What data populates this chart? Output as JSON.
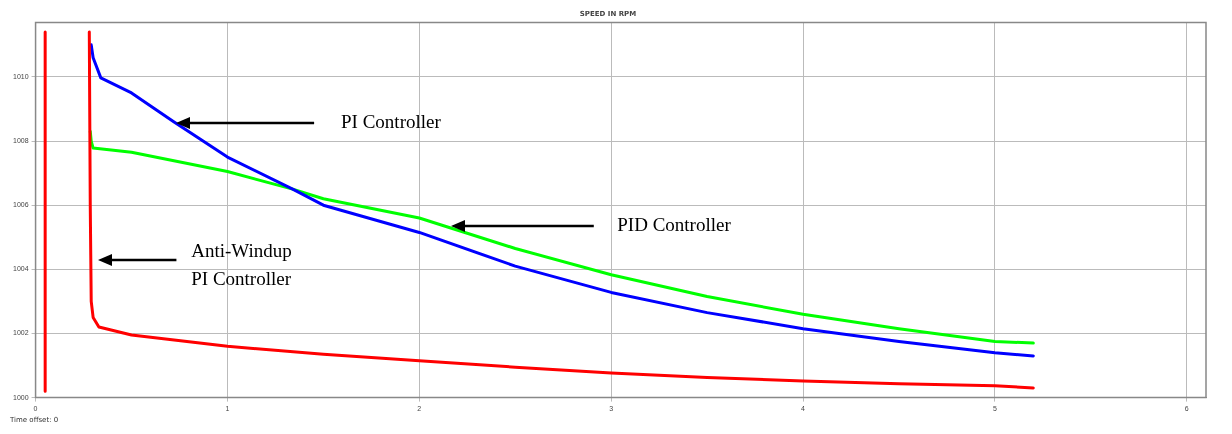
{
  "chart_data": {
    "type": "line",
    "title": "SPEED IN RPM",
    "xlim": [
      0,
      6.1
    ],
    "xticks": [
      0,
      1,
      2,
      3,
      4,
      5,
      6
    ],
    "ylim": [
      1000,
      1011.7
    ],
    "yticks": [
      1000,
      1002,
      1004,
      1006,
      1008,
      1010
    ],
    "grid": true,
    "legend": false,
    "marker": "none",
    "line_style": "solid",
    "series": [
      {
        "color": "#ff0000",
        "x": [
          0.05,
          0.05,
          0.15,
          0.28,
          0.285,
          0.29,
          0.3,
          0.33,
          0.5,
          1,
          1.5,
          2,
          2.5,
          3,
          3.5,
          4,
          4.5,
          5,
          5.2
        ],
        "values": [
          1000.2,
          1011.4,
          null,
          1011.4,
          1006,
          1003,
          1002.5,
          1002.2,
          1001.95,
          1001.6,
          1001.35,
          1001.15,
          1000.95,
          1000.77,
          1000.63,
          1000.52,
          1000.43,
          1000.37,
          1000.3
        ]
      },
      {
        "color": "#0000ff",
        "x": [
          0.29,
          0.3,
          0.34,
          0.5,
          0.72,
          1,
          1.34,
          1.5,
          2,
          2.5,
          3,
          3.5,
          4,
          4.5,
          5,
          5.2
        ],
        "values": [
          1011,
          1010.6,
          1009.97,
          1009.5,
          1008.6,
          1007.5,
          1006.5,
          1006.0,
          1005.15,
          1004.1,
          1003.28,
          1002.65,
          1002.15,
          1001.75,
          1001.4,
          1001.3
        ]
      },
      {
        "color": "#00ff00",
        "x": [
          0.285,
          0.29,
          0.3,
          0.5,
          1,
          1.34,
          1.5,
          2,
          2.5,
          3,
          3.5,
          4,
          4.5,
          5,
          5.2
        ],
        "values": [
          1008.3,
          1008.0,
          1007.78,
          1007.65,
          1007.05,
          1006.5,
          1006.2,
          1005.6,
          1004.65,
          1003.83,
          1003.15,
          1002.6,
          1002.15,
          1001.75,
          1001.7
        ]
      }
    ],
    "annotations": [
      "PI Controller",
      "PID Controller",
      "Anti-Windup\nPI Controller",
      "Time offset: 0"
    ]
  }
}
